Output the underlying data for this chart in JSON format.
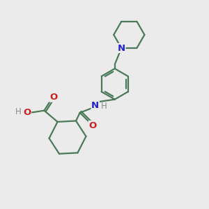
{
  "bg_color": "#ebebeb",
  "bond_color": "#4a7a5a",
  "N_color": "#2222cc",
  "O_color": "#cc2222",
  "H_color": "#888888",
  "line_width": 1.6,
  "font_size": 8.5,
  "fig_size": [
    3.0,
    3.0
  ],
  "dpi": 100,
  "xlim": [
    0,
    10
  ],
  "ylim": [
    0,
    10
  ]
}
